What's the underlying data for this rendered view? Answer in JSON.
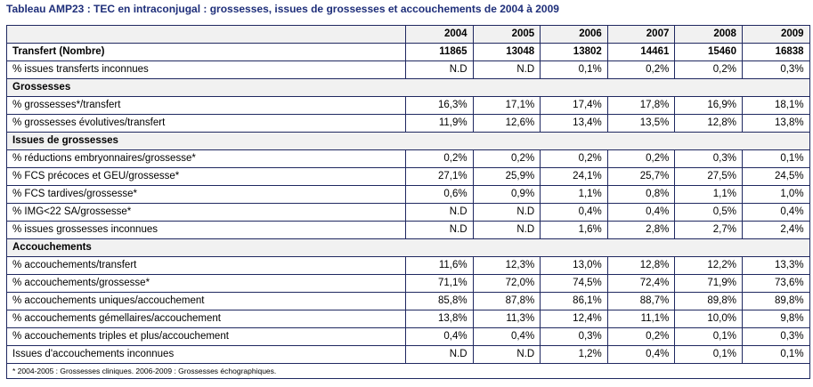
{
  "title": "Tableau AMP23 : TEC en intraconjugal : grossesses, issues de grossesses et accouchements de 2004 à 2009",
  "years": [
    "2004",
    "2005",
    "2006",
    "2007",
    "2008",
    "2009"
  ],
  "transfert": {
    "label": "Transfert (Nombre)",
    "values": [
      "11865",
      "13048",
      "13802",
      "14461",
      "15460",
      "16838"
    ]
  },
  "issues_transferts": {
    "label": "% issues transferts inconnues",
    "values": [
      "N.D",
      "N.D",
      "0,1%",
      "0,2%",
      "0,2%",
      "0,3%"
    ]
  },
  "sections": [
    {
      "title": "Grossesses",
      "rows": [
        {
          "label": "% grossesses*/transfert",
          "values": [
            "16,3%",
            "17,1%",
            "17,4%",
            "17,8%",
            "16,9%",
            "18,1%"
          ]
        },
        {
          "label": "% grossesses évolutives/transfert",
          "values": [
            "11,9%",
            "12,6%",
            "13,4%",
            "13,5%",
            "12,8%",
            "13,8%"
          ]
        }
      ]
    },
    {
      "title": "Issues de grossesses",
      "rows": [
        {
          "label": "% réductions embryonnaires/grossesse*",
          "values": [
            "0,2%",
            "0,2%",
            "0,2%",
            "0,2%",
            "0,3%",
            "0,1%"
          ]
        },
        {
          "label": "% FCS précoces et GEU/grossesse*",
          "values": [
            "27,1%",
            "25,9%",
            "24,1%",
            "25,7%",
            "27,5%",
            "24,5%"
          ]
        },
        {
          "label": "% FCS tardives/grossesse*",
          "values": [
            "0,6%",
            "0,9%",
            "1,1%",
            "0,8%",
            "1,1%",
            "1,0%"
          ]
        },
        {
          "label": "% IMG<22 SA/grossesse*",
          "values": [
            "N.D",
            "N.D",
            "0,4%",
            "0,4%",
            "0,5%",
            "0,4%"
          ]
        },
        {
          "label": "% issues grossesses inconnues",
          "values": [
            "N.D",
            "N.D",
            "1,6%",
            "2,8%",
            "2,7%",
            "2,4%"
          ]
        }
      ]
    },
    {
      "title": "Accouchements",
      "rows": [
        {
          "label": "% accouchements/transfert",
          "values": [
            "11,6%",
            "12,3%",
            "13,0%",
            "12,8%",
            "12,2%",
            "13,3%"
          ]
        },
        {
          "label": "% accouchements/grossesse*",
          "values": [
            "71,1%",
            "72,0%",
            "74,5%",
            "72,4%",
            "71,9%",
            "73,6%"
          ]
        },
        {
          "label": "% accouchements uniques/accouchement",
          "values": [
            "85,8%",
            "87,8%",
            "86,1%",
            "88,7%",
            "89,8%",
            "89,8%"
          ]
        },
        {
          "label": "% accouchements gémellaires/accouchement",
          "values": [
            "13,8%",
            "11,3%",
            "12,4%",
            "11,1%",
            "10,0%",
            "9,8%"
          ]
        },
        {
          "label": "% accouchements triples et plus/accouchement",
          "values": [
            "0,4%",
            "0,4%",
            "0,3%",
            "0,2%",
            "0,1%",
            "0,3%"
          ]
        },
        {
          "label": "Issues d'accouchements inconnues",
          "values": [
            "N.D",
            "N.D",
            "1,2%",
            "0,4%",
            "0,1%",
            "0,1%"
          ]
        }
      ]
    }
  ],
  "footnote": "* 2004-2005 : Grossesses cliniques. 2006-2009 : Grossesses échographiques."
}
